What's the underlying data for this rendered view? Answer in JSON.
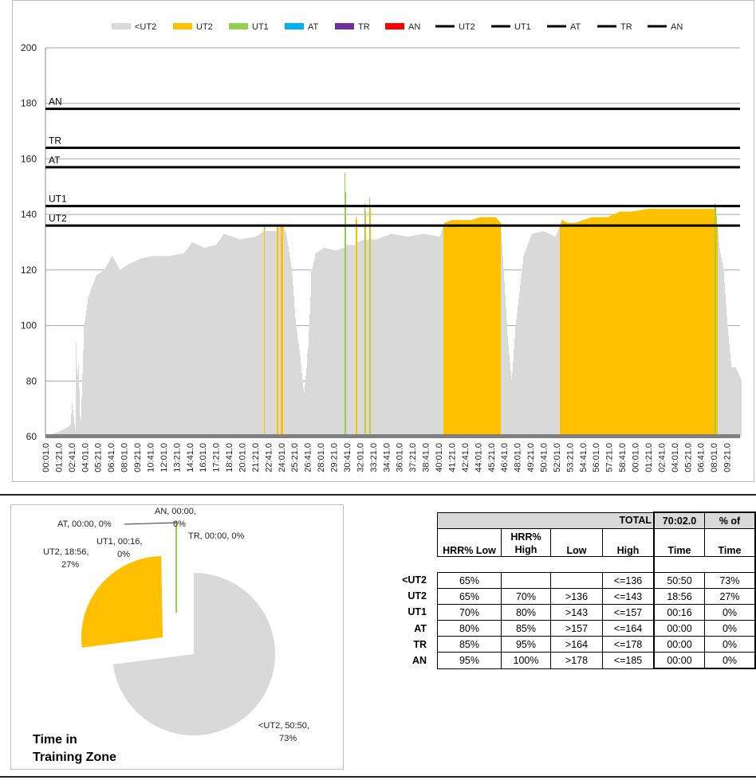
{
  "chart_data": {
    "type": "bar",
    "title": "",
    "xlabel": "",
    "ylabel": "",
    "ylim": [
      60,
      200
    ],
    "yticks": [
      60,
      80,
      100,
      120,
      140,
      160,
      180,
      200
    ],
    "xtick_labels": [
      "00:01.0",
      "01:21.0",
      "02:41.0",
      "04:01.0",
      "05:21.0",
      "06:41.0",
      "08:01.0",
      "09:21.0",
      "10:41.0",
      "12:01.0",
      "13:21.0",
      "14:41.0",
      "16:01.0",
      "17:21.0",
      "18:41.0",
      "20:01.0",
      "21:21.0",
      "22:41.0",
      "24:01.0",
      "25:21.0",
      "26:41.0",
      "28:01.0",
      "29:21.0",
      "30:41.0",
      "32:01.0",
      "33:21.0",
      "34:41.0",
      "36:01.0",
      "37:21.0",
      "38:41.0",
      "40:01.0",
      "41:21.0",
      "42:41.0",
      "44:01.0",
      "45:21.0",
      "46:41.0",
      "48:01.0",
      "49:21.0",
      "50:41.0",
      "52:01.0",
      "53:21.0",
      "54:41.0",
      "56:01.0",
      "57:21.0",
      "58:41.0",
      "00:01.0",
      "01:21.0",
      "02:41.0",
      "04:01.0",
      "05:21.0",
      "06:41.0",
      "08:01.0",
      "09:21.0"
    ],
    "xtick_step_seconds": 80,
    "legend": {
      "placement": "top",
      "entries": [
        {
          "label": "<UT2",
          "kind": "area",
          "color": "#d9d9d9"
        },
        {
          "label": "UT2",
          "kind": "area",
          "color": "#ffc000"
        },
        {
          "label": "UT1",
          "kind": "area",
          "color": "#92d050"
        },
        {
          "label": "AT",
          "kind": "area",
          "color": "#00b0f0"
        },
        {
          "label": "TR",
          "kind": "area",
          "color": "#7030a0"
        },
        {
          "label": "AN",
          "kind": "area",
          "color": "#ff0000"
        },
        {
          "label": "UT2",
          "kind": "line",
          "color": "#000000"
        },
        {
          "label": "UT1",
          "kind": "line",
          "color": "#000000"
        },
        {
          "label": "AT",
          "kind": "line",
          "color": "#000000"
        },
        {
          "label": "TR",
          "kind": "line",
          "color": "#000000"
        },
        {
          "label": "AN",
          "kind": "line",
          "color": "#000000"
        }
      ]
    },
    "thresholds": [
      {
        "name": "UT2",
        "value": 136
      },
      {
        "name": "UT1",
        "value": 143
      },
      {
        "name": "AT",
        "value": 157
      },
      {
        "name": "TR",
        "value": 164
      },
      {
        "name": "AN",
        "value": 178
      }
    ],
    "zone_colors": {
      "<UT2": "#d9d9d9",
      "UT2": "#ffc000",
      "UT1": "#92d050",
      "AT": "#00b0f0",
      "TR": "#7030a0",
      "AN": "#ff0000"
    },
    "heart_rate_seconds_bpm": [
      [
        0,
        60
      ],
      [
        88,
        62
      ],
      [
        150,
        64
      ],
      [
        161,
        72
      ],
      [
        180,
        62
      ],
      [
        185,
        94
      ],
      [
        192,
        80
      ],
      [
        200,
        86
      ],
      [
        212,
        62
      ],
      [
        234,
        100
      ],
      [
        259,
        110
      ],
      [
        307,
        118
      ],
      [
        356,
        120
      ],
      [
        405,
        125
      ],
      [
        454,
        120
      ],
      [
        502,
        122
      ],
      [
        576,
        124
      ],
      [
        649,
        125
      ],
      [
        746,
        125
      ],
      [
        844,
        126
      ],
      [
        893,
        130
      ],
      [
        966,
        128
      ],
      [
        1039,
        129
      ],
      [
        1088,
        133
      ],
      [
        1185,
        131
      ],
      [
        1283,
        132
      ],
      [
        1332,
        134
      ],
      [
        1337,
        136.5
      ],
      [
        1342,
        134
      ],
      [
        1410,
        134
      ],
      [
        1415,
        136.5
      ],
      [
        1420,
        135
      ],
      [
        1439,
        136.5
      ],
      [
        1449,
        136
      ],
      [
        1468,
        133
      ],
      [
        1502,
        120
      ],
      [
        1527,
        100
      ],
      [
        1551,
        90
      ],
      [
        1576,
        75
      ],
      [
        1600,
        90
      ],
      [
        1624,
        120
      ],
      [
        1649,
        126
      ],
      [
        1698,
        128
      ],
      [
        1771,
        127
      ],
      [
        1820,
        128
      ],
      [
        1824,
        128
      ],
      [
        1829,
        155
      ],
      [
        1834,
        129
      ],
      [
        1893,
        129
      ],
      [
        1898,
        139
      ],
      [
        1903,
        130
      ],
      [
        1946,
        131
      ],
      [
        1951,
        144
      ],
      [
        1956,
        131
      ],
      [
        1975,
        131
      ],
      [
        1980,
        146
      ],
      [
        1985,
        131
      ],
      [
        2015,
        131
      ],
      [
        2112,
        133
      ],
      [
        2210,
        132
      ],
      [
        2307,
        133
      ],
      [
        2405,
        132
      ],
      [
        2434,
        137
      ],
      [
        2478,
        138
      ],
      [
        2527,
        138
      ],
      [
        2600,
        138
      ],
      [
        2649,
        139
      ],
      [
        2746,
        139
      ],
      [
        2776,
        137
      ],
      [
        2795,
        120
      ],
      [
        2820,
        95
      ],
      [
        2844,
        80
      ],
      [
        2868,
        100
      ],
      [
        2917,
        125
      ],
      [
        2966,
        133
      ],
      [
        3039,
        134
      ],
      [
        3112,
        132
      ],
      [
        3151,
        138
      ],
      [
        3185,
        137
      ],
      [
        3234,
        137
      ],
      [
        3283,
        138
      ],
      [
        3332,
        139
      ],
      [
        3429,
        139
      ],
      [
        3502,
        141
      ],
      [
        3576,
        141
      ],
      [
        3673,
        142
      ],
      [
        3771,
        142
      ],
      [
        3868,
        142
      ],
      [
        3966,
        142
      ],
      [
        4063,
        142
      ],
      [
        4083,
        142
      ],
      [
        4088,
        144
      ],
      [
        4093,
        140
      ],
      [
        4112,
        128
      ],
      [
        4137,
        120
      ],
      [
        4161,
        100
      ],
      [
        4185,
        85
      ],
      [
        4210,
        85
      ],
      [
        4249,
        80
      ]
    ]
  },
  "pie": {
    "title": "Time in Training Zone",
    "slices": [
      {
        "zone": "<UT2",
        "time": "50:50",
        "percent": 73,
        "color": "#d9d9d9",
        "label": "<UT2, 50:50,",
        "label2": "73%"
      },
      {
        "zone": "UT2",
        "time": "18:56",
        "percent": 27,
        "color": "#ffc000",
        "label": "UT2, 18:56,",
        "label2": "27%"
      },
      {
        "zone": "UT1",
        "time": "00:16",
        "percent": 0.4,
        "color": "#92d050",
        "label": "UT1, 00:16,",
        "label2": "0%"
      },
      {
        "zone": "AT",
        "time": "00:00",
        "percent": 0,
        "color": "#00b0f0",
        "label": "AT, 00:00, 0%",
        "label2": ""
      },
      {
        "zone": "TR",
        "time": "00:00",
        "percent": 0,
        "color": "#7030a0",
        "label": "TR, 00:00, 0%",
        "label2": ""
      },
      {
        "zone": "AN",
        "time": "00:00",
        "percent": 0,
        "color": "#ff0000",
        "label": "AN, 00:00,",
        "label2": "0%"
      }
    ]
  },
  "table": {
    "total_label": "TOTAL",
    "total_time": "70:02.0",
    "pct_of": "% of",
    "headers": [
      "HRR% Low",
      "HRR%\nHigh",
      "Low",
      "High",
      "Time",
      "Time"
    ],
    "rows": [
      {
        "zone": "<UT2",
        "hrr_low": "65%",
        "hrr_high": "",
        "low": "",
        "high": "<=136",
        "time": "50:50",
        "pct": "73%"
      },
      {
        "zone": "UT2",
        "hrr_low": "65%",
        "hrr_high": "70%",
        "low": ">136",
        "high": "<=143",
        "time": "18:56",
        "pct": "27%"
      },
      {
        "zone": "UT1",
        "hrr_low": "70%",
        "hrr_high": "80%",
        "low": ">143",
        "high": "<=157",
        "time": "00:16",
        "pct": "0%"
      },
      {
        "zone": "AT",
        "hrr_low": "80%",
        "hrr_high": "85%",
        "low": ">157",
        "high": "<=164",
        "time": "00:00",
        "pct": "0%"
      },
      {
        "zone": "TR",
        "hrr_low": "85%",
        "hrr_high": "95%",
        "low": ">164",
        "high": "<=178",
        "time": "00:00",
        "pct": "0%"
      },
      {
        "zone": "AN",
        "hrr_low": "95%",
        "hrr_high": "100%",
        "low": ">178",
        "high": "<=185",
        "time": "00:00",
        "pct": "0%"
      }
    ]
  }
}
